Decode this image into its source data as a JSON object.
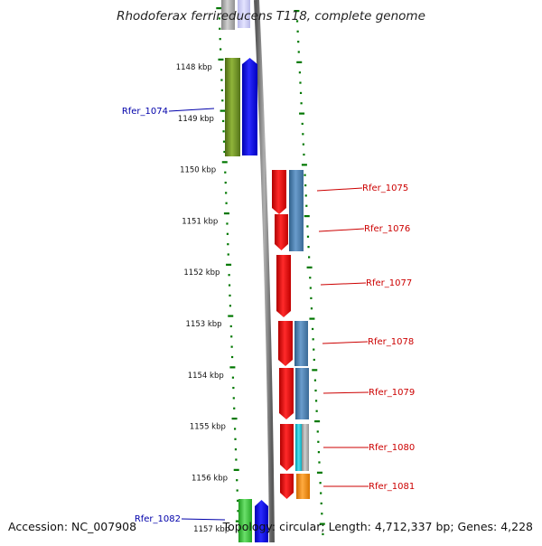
{
  "title": "Rhodoferax ferrireducens T118, complete genome",
  "accession": "Accession: NC_007908",
  "summary": "Topology: circular; Length: 4,712,337 bp; Genes: 4,228",
  "ruler": [
    {
      "label": "1148 kbp",
      "kbp": 1148
    },
    {
      "label": "1149 kbp",
      "kbp": 1149
    },
    {
      "label": "1150 kbp",
      "kbp": 1150
    },
    {
      "label": "1151 kbp",
      "kbp": 1151
    },
    {
      "label": "1152 kbp",
      "kbp": 1152
    },
    {
      "label": "1153 kbp",
      "kbp": 1153
    },
    {
      "label": "1154 kbp",
      "kbp": 1154
    },
    {
      "label": "1155 kbp",
      "kbp": 1155
    },
    {
      "label": "1156 kbp",
      "kbp": 1156
    },
    {
      "label": "1157 kbp",
      "kbp": 1157
    }
  ],
  "labels": [
    {
      "text": "Rfer_1074",
      "strand": "minus",
      "color": "#0000aa"
    },
    {
      "text": "Rfer_1075",
      "strand": "plus",
      "color": "#cc0000"
    },
    {
      "text": "Rfer_1076",
      "strand": "plus",
      "color": "#cc0000"
    },
    {
      "text": "Rfer_1077",
      "strand": "plus",
      "color": "#cc0000"
    },
    {
      "text": "Rfer_1078",
      "strand": "plus",
      "color": "#cc0000"
    },
    {
      "text": "Rfer_1079",
      "strand": "plus",
      "color": "#cc0000"
    },
    {
      "text": "Rfer_1080",
      "strand": "plus",
      "color": "#cc0000"
    },
    {
      "text": "Rfer_1081",
      "strand": "plus",
      "color": "#cc0000"
    },
    {
      "text": "Rfer_1082",
      "strand": "minus",
      "color": "#0000aa"
    }
  ],
  "colors": {
    "cds_plus": "#ff0000",
    "cds_minus": "#0000ff",
    "cog_steelblue": "#4682b4",
    "cog_olive": "#6b8e23",
    "cog_green": "#32cd32",
    "cog_orange": "#ff8c00",
    "cog_cyan": "#00bcd4",
    "cog_gray": "#a9a9a9",
    "backbone": "#888888",
    "ticks": "#007700"
  }
}
